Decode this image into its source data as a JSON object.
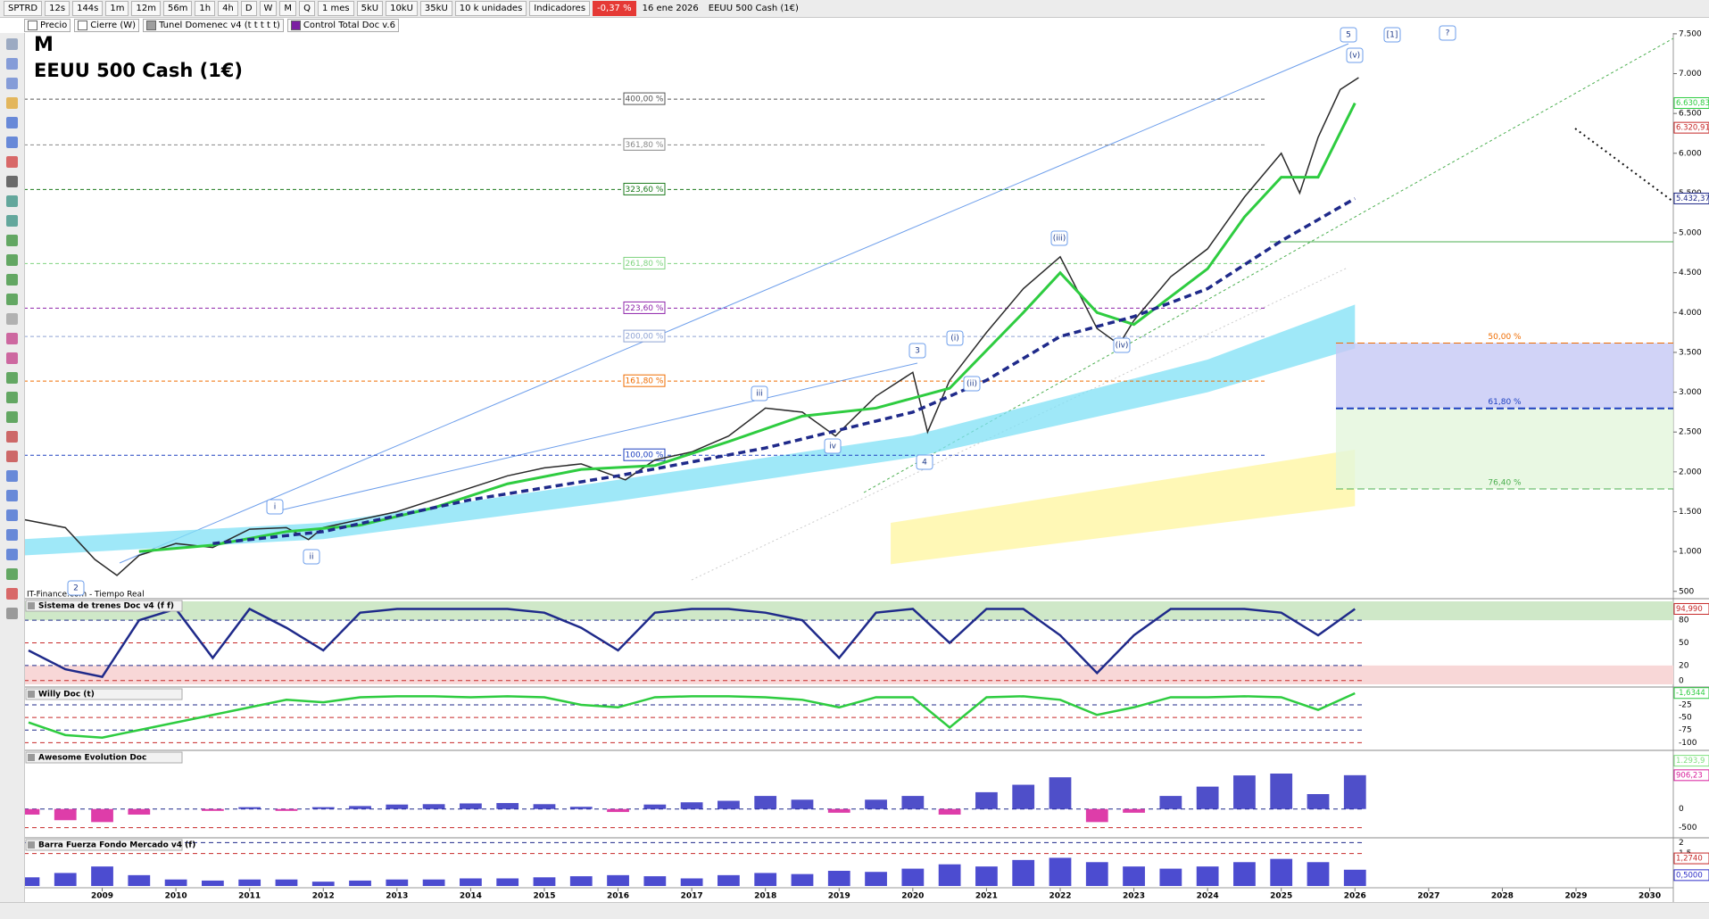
{
  "toolbar": {
    "symbol": "SPTRD",
    "timeframes": [
      "12s",
      "144s",
      "1m",
      "12m",
      "56m",
      "1h",
      "4h",
      "D",
      "W",
      "M",
      "Q"
    ],
    "period": "1 mes",
    "units": [
      "5kU",
      "10kU",
      "35kU"
    ],
    "units_select": "10 k unidades",
    "indicators": "Indicadores",
    "change": "-0,37 %",
    "date": "16 ene 2026",
    "instrument": "EEUU 500 Cash (1€)"
  },
  "legend_row": [
    {
      "text": "Precio",
      "color": "#ffffff"
    },
    {
      "text": "Cierre (W)",
      "color": "#ffffff"
    },
    {
      "text": "Tunel Domenec v4 (t t t t t)",
      "color": "#9e9e9e"
    },
    {
      "text": "Control Total Doc v.6",
      "color": "#7b1fa2"
    }
  ],
  "chart_data": {
    "type": "line",
    "timeframe_label": "M",
    "title": "EEUU 500 Cash (1€)",
    "source": "IT-Finance.com - Tiempo Real",
    "xlim": [
      2007.94,
      2030.32
    ],
    "xticks": [
      2009,
      2010,
      2011,
      2012,
      2013,
      2014,
      2015,
      2016,
      2017,
      2018,
      2019,
      2020,
      2021,
      2022,
      2023,
      2024,
      2025,
      2026,
      2027,
      2028,
      2029,
      2030
    ],
    "ylim": [
      430,
      7510
    ],
    "yticks": [
      {
        "value": 7500,
        "label": "7.500"
      },
      {
        "value": 7000,
        "label": "7.000"
      },
      {
        "value": 6500,
        "label": "6.500"
      },
      {
        "value": 6000,
        "label": "6.000"
      },
      {
        "value": 5500,
        "label": "5.500"
      },
      {
        "value": 5000,
        "label": "5.000"
      },
      {
        "value": 4500,
        "label": "4.500"
      },
      {
        "value": 4000,
        "label": "4.000"
      },
      {
        "value": 3500,
        "label": "3.500"
      },
      {
        "value": 3000,
        "label": "3.000"
      },
      {
        "value": 2500,
        "label": "2.500"
      },
      {
        "value": 2000,
        "label": "2.000"
      },
      {
        "value": 1500,
        "label": "1.500"
      },
      {
        "value": 1000,
        "label": "1.000"
      },
      500
    ],
    "series": [
      {
        "color": "#2a2a2a",
        "width": 1.5,
        "dashed": false,
        "x": [
          2007.94,
          2008.5,
          2008.9,
          2009.2,
          2009.5,
          2010.0,
          2010.5,
          2011.0,
          2011.5,
          2011.8,
          2012.0,
          2012.5,
          2013.0,
          2013.5,
          2014.0,
          2014.5,
          2015.0,
          2015.5,
          2016.1,
          2016.5,
          2017.0,
          2017.5,
          2018.0,
          2018.5,
          2018.95,
          2019.5,
          2020.0,
          2020.2,
          2020.5,
          2021.0,
          2021.5,
          2022.0,
          2022.5,
          2022.8,
          2023.0,
          2023.5,
          2024.0,
          2024.5,
          2025.0,
          2025.25,
          2025.5,
          2025.8,
          2026.05
        ],
        "values": [
          1400,
          1300,
          900,
          700,
          950,
          1100,
          1050,
          1280,
          1300,
          1150,
          1300,
          1400,
          1500,
          1650,
          1800,
          1950,
          2050,
          2100,
          1900,
          2150,
          2250,
          2450,
          2800,
          2750,
          2450,
          2950,
          3250,
          2500,
          3150,
          3750,
          4300,
          4700,
          3800,
          3600,
          3900,
          4450,
          4800,
          5450,
          6000,
          5500,
          6200,
          6800,
          6950
        ]
      },
      {
        "color": "#2ecc40",
        "width": 3,
        "dashed": false,
        "x": [
          2009.5,
          2010.5,
          2011.5,
          2012.5,
          2013.5,
          2014.5,
          2015.5,
          2016.5,
          2017.5,
          2018.5,
          2019.5,
          2020.5,
          2021.5,
          2022.0,
          2022.5,
          2023.0,
          2023.5,
          2024.0,
          2024.5,
          2025.0,
          2025.5,
          2026.0
        ],
        "values": [
          1000,
          1080,
          1250,
          1330,
          1550,
          1850,
          2030,
          2080,
          2380,
          2700,
          2800,
          3050,
          4000,
          4500,
          4000,
          3850,
          4200,
          4550,
          5200,
          5700,
          5700,
          6630
        ]
      },
      {
        "color": "#1f2a8a",
        "width": 3.5,
        "dashed": true,
        "x": [
          2010.5,
          2012.0,
          2014.0,
          2016.0,
          2018.0,
          2020.0,
          2021.0,
          2022.0,
          2023.0,
          2024.0,
          2025.0,
          2026.0
        ],
        "values": [
          1100,
          1250,
          1650,
          1950,
          2300,
          2750,
          3150,
          3700,
          3950,
          4300,
          4900,
          5432
        ]
      }
    ],
    "bands": [
      {
        "color": "#7fe0f5",
        "x": [
          2007.94,
          2012,
          2016,
          2020,
          2024,
          2026
        ],
        "upper": [
          1156,
          1360,
          1900,
          2455,
          3410,
          4100
        ],
        "lower": [
          951,
          1156,
          1635,
          2180,
          3000,
          3550
        ]
      },
      {
        "color": "#fff59d",
        "x": [
          2019.7,
          2026
        ],
        "upper": [
          1360,
          2280
        ],
        "lower": [
          840,
          1570
        ]
      }
    ],
    "price_markers": [
      {
        "value": 6630.83,
        "label": "6.630,83",
        "color": "#2ecc40"
      },
      {
        "value": 6320.91,
        "label": "6.320,91",
        "color": "#c62828"
      },
      {
        "value": 5432.37,
        "label": "5.432,37",
        "color": "#1f2a8a"
      }
    ],
    "fib_levels": [
      {
        "label": "400,00 %",
        "price": 6680,
        "color": "#555555"
      },
      {
        "label": "361,80 %",
        "price": 6106,
        "color": "#888888"
      },
      {
        "label": "323,60 %",
        "price": 5545,
        "color": "#1b7a1b"
      },
      {
        "label": "261,80 %",
        "price": 4615,
        "color": "#7fd37f"
      },
      {
        "label": "223,60 %",
        "price": 4055,
        "color": "#8e24aa"
      },
      {
        "label": "200,00 %",
        "price": 3700,
        "color": "#90a4d4"
      },
      {
        "label": "161,80 %",
        "price": 3139,
        "color": "#ef6c00"
      },
      {
        "label": "100,00 %",
        "price": 2209,
        "color": "#1e40c0"
      }
    ],
    "right_fibs": [
      {
        "label": "50,00 %",
        "price": 3617,
        "color": "#ef6c00"
      },
      {
        "label": "61,80 %",
        "price": 2797,
        "color": "#1e40c0"
      },
      {
        "label": "76,40 %",
        "price": 1785,
        "color": "#4caf50"
      }
    ],
    "wave_labels": [
      "5",
      "(v)",
      "[1]",
      "?",
      "(iii)",
      "(i)",
      "iii",
      "3",
      "i",
      "ii",
      "4",
      "(iv)",
      "2",
      "(ii)",
      "iv"
    ]
  },
  "panels_x": [
    2008,
    2008.5,
    2009,
    2009.5,
    2010,
    2010.5,
    2011,
    2011.5,
    2012,
    2012.5,
    2013,
    2013.5,
    2014,
    2014.5,
    2015,
    2015.5,
    2016,
    2016.5,
    2017,
    2017.5,
    2018,
    2018.5,
    2019,
    2019.5,
    2020,
    2020.5,
    2021,
    2021.5,
    2022,
    2022.5,
    2023,
    2023.5,
    2024,
    2024.5,
    2025,
    2025.5,
    2026
  ],
  "panels": [
    {
      "title": "Sistema de trenes Doc v4 (f f)",
      "type": "line",
      "color": "#1f2a8a",
      "ylim": [
        -5,
        105
      ],
      "yticks": [
        80,
        50,
        20,
        0
      ],
      "marker": {
        "value": 94.99,
        "label": "94,990",
        "color": "#c62828"
      },
      "values": [
        40,
        15,
        5,
        80,
        95,
        30,
        95,
        70,
        40,
        90,
        95,
        95,
        95,
        95,
        90,
        70,
        40,
        90,
        95,
        95,
        90,
        80,
        30,
        90,
        95,
        50,
        95,
        95,
        60,
        10,
        60,
        95,
        95,
        95,
        90,
        60,
        95
      ]
    },
    {
      "title": "Willy Doc (t)",
      "type": "line",
      "color": "#2ecc40",
      "ylim": [
        -110,
        5
      ],
      "yticks": [
        -25,
        -50,
        -75,
        -100
      ],
      "marker": {
        "value": -1.6344,
        "label": "-1,6344",
        "color": "#2ecc40"
      },
      "values": [
        -60,
        -85,
        -90,
        -75,
        -60,
        -45,
        -30,
        -15,
        -20,
        -10,
        -8,
        -8,
        -10,
        -8,
        -10,
        -25,
        -30,
        -10,
        -8,
        -8,
        -10,
        -15,
        -30,
        -10,
        -10,
        -70,
        -10,
        -8,
        -15,
        -45,
        -30,
        -10,
        -10,
        -8,
        -10,
        -35,
        -2
      ]
    },
    {
      "title": "Awesome Evolution Doc",
      "type": "histogram",
      "color": "#3030c0",
      "neg_color": "#d81b9a",
      "ylim": [
        -700,
        1500
      ],
      "yticks": [
        0,
        -500
      ],
      "marker": {
        "value": 906.23,
        "label": "906,23",
        "color": "#d81b9a"
      },
      "marker2": {
        "value": 1293.9,
        "label": "1.293,9",
        "color": "#7fe07f"
      },
      "values": [
        -150,
        -300,
        -350,
        -150,
        0,
        -50,
        50,
        -50,
        50,
        80,
        120,
        130,
        150,
        160,
        130,
        60,
        -80,
        120,
        180,
        220,
        350,
        250,
        -100,
        250,
        350,
        -150,
        450,
        650,
        850,
        -350,
        -100,
        350,
        600,
        900,
        950,
        400,
        906
      ]
    },
    {
      "title": "Barra Fuerza Fondo Mercado v4 (f)",
      "type": "histogram",
      "color": "#2d2dc8",
      "neg_color": "#c62828",
      "ylim": [
        0,
        2.1
      ],
      "yticks": [
        2,
        {
          "value": 1.5,
          "label": "1,5"
        }
      ],
      "marker": {
        "value": 1.274,
        "label": "1,2740",
        "color": "#c62828"
      },
      "marker2": {
        "value": 0.5,
        "label": "0,5000",
        "color": "#2d2dc8"
      },
      "values": [
        0.4,
        0.6,
        0.9,
        0.5,
        0.3,
        0.25,
        0.3,
        0.3,
        0.2,
        0.25,
        0.3,
        0.3,
        0.35,
        0.35,
        0.4,
        0.45,
        0.5,
        0.45,
        0.35,
        0.5,
        0.6,
        0.55,
        0.7,
        0.65,
        0.8,
        1.0,
        0.9,
        1.2,
        1.3,
        1.1,
        0.9,
        0.8,
        0.9,
        1.1,
        1.25,
        1.1,
        0.75
      ]
    }
  ]
}
